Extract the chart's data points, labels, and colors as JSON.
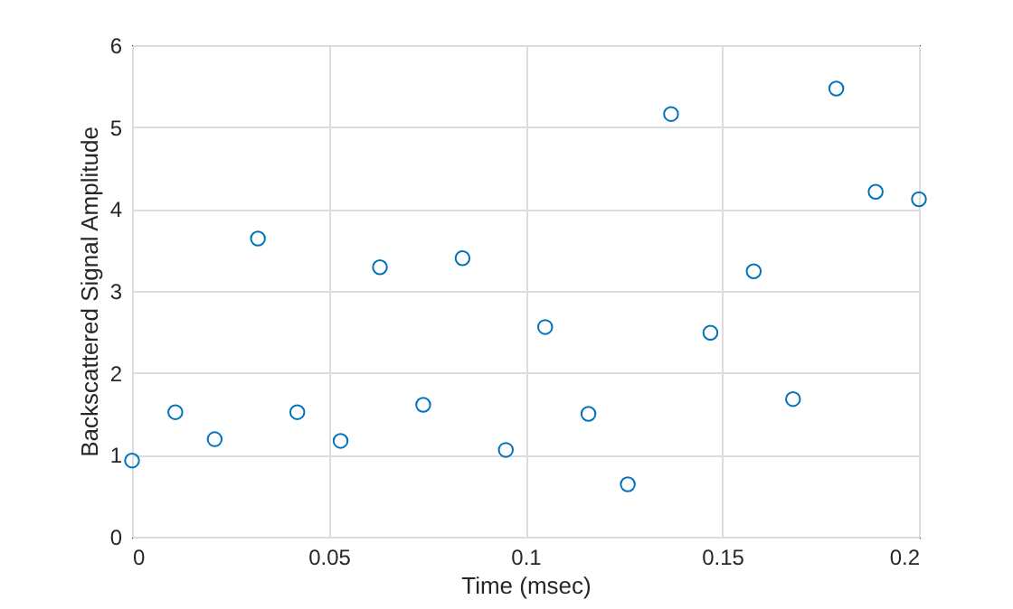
{
  "chart_data": {
    "type": "scatter",
    "xlabel": "Time (msec)",
    "ylabel": "Backscattered Signal Amplitude",
    "x": [
      0,
      0.011,
      0.021,
      0.032,
      0.042,
      0.053,
      0.063,
      0.074,
      0.084,
      0.095,
      0.105,
      0.116,
      0.126,
      0.137,
      0.147,
      0.158,
      0.168,
      0.179,
      0.189,
      0.2
    ],
    "series": [
      {
        "color": "#0072bd",
        "values": [
          0.93,
          1.52,
          1.19,
          3.64,
          1.52,
          1.17,
          3.29,
          1.61,
          3.4,
          1.06,
          2.56,
          1.5,
          0.64,
          5.16,
          2.49,
          3.24,
          1.68,
          5.47,
          4.21,
          4.12
        ]
      }
    ],
    "xlim": [
      0,
      0.2
    ],
    "xticks": [
      0,
      {
        "value": 0.05,
        "label": "0.05"
      },
      {
        "value": 0.1,
        "label": "0.1"
      },
      {
        "value": 0.15,
        "label": "0.15"
      },
      {
        "value": 0.2,
        "label": "0.2"
      }
    ],
    "ylim": [
      0,
      6
    ],
    "yticks": [
      0,
      1,
      2,
      3,
      4,
      5,
      6
    ],
    "grid": true,
    "marker": "circle"
  }
}
